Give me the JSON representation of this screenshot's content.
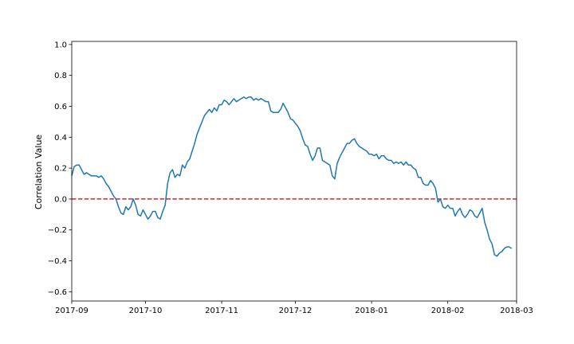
{
  "chart_data": {
    "type": "line",
    "title": "",
    "xlabel": "",
    "ylabel": "Correlation Value",
    "xlim": [
      "2017-09-01",
      "2018-03-01"
    ],
    "ylim": [
      -0.66,
      1.02
    ],
    "grid": false,
    "x_ticks": [
      {
        "date": "2017-09-01",
        "label": "2017-09"
      },
      {
        "date": "2017-10-01",
        "label": "2017-10"
      },
      {
        "date": "2017-11-01",
        "label": "2017-11"
      },
      {
        "date": "2017-12-01",
        "label": "2017-12"
      },
      {
        "date": "2018-01-01",
        "label": "2018-01"
      },
      {
        "date": "2018-02-01",
        "label": "2018-02"
      },
      {
        "date": "2018-03-01",
        "label": "2018-03"
      }
    ],
    "y_ticks": [
      {
        "value": 1.0,
        "label": "1.0"
      },
      {
        "value": 0.8,
        "label": "0.8"
      },
      {
        "value": 0.6,
        "label": "0.6"
      },
      {
        "value": 0.4,
        "label": "0.4"
      },
      {
        "value": 0.2,
        "label": "0.2"
      },
      {
        "value": 0.0,
        "label": "0.0"
      },
      {
        "value": -0.2,
        "label": "−0.2"
      },
      {
        "value": -0.4,
        "label": "−0.4"
      },
      {
        "value": -0.6,
        "label": "−0.6"
      }
    ],
    "reference_line": {
      "y": 0.0,
      "color": "#d62728",
      "style": "dashed"
    },
    "series": [
      {
        "color": "#1f77b4",
        "points": [
          [
            "2017-09-01",
            0.15
          ],
          [
            "2017-09-02",
            0.21
          ],
          [
            "2017-09-03",
            0.22
          ],
          [
            "2017-09-04",
            0.22
          ],
          [
            "2017-09-05",
            0.19
          ],
          [
            "2017-09-06",
            0.16
          ],
          [
            "2017-09-07",
            0.17
          ],
          [
            "2017-09-08",
            0.16
          ],
          [
            "2017-09-09",
            0.15
          ],
          [
            "2017-09-10",
            0.15
          ],
          [
            "2017-09-11",
            0.15
          ],
          [
            "2017-09-12",
            0.14
          ],
          [
            "2017-09-13",
            0.15
          ],
          [
            "2017-09-14",
            0.13
          ],
          [
            "2017-09-15",
            0.1
          ],
          [
            "2017-09-16",
            0.08
          ],
          [
            "2017-09-17",
            0.05
          ],
          [
            "2017-09-18",
            0.02
          ],
          [
            "2017-09-19",
            0.0
          ],
          [
            "2017-09-20",
            -0.05
          ],
          [
            "2017-09-21",
            -0.09
          ],
          [
            "2017-09-22",
            -0.1
          ],
          [
            "2017-09-23",
            -0.05
          ],
          [
            "2017-09-24",
            -0.07
          ],
          [
            "2017-09-25",
            -0.05
          ],
          [
            "2017-09-26",
            0.0
          ],
          [
            "2017-09-27",
            -0.04
          ],
          [
            "2017-09-28",
            -0.1
          ],
          [
            "2017-09-29",
            -0.11
          ],
          [
            "2017-09-30",
            -0.07
          ],
          [
            "2017-10-01",
            -0.1
          ],
          [
            "2017-10-02",
            -0.13
          ],
          [
            "2017-10-03",
            -0.11
          ],
          [
            "2017-10-04",
            -0.08
          ],
          [
            "2017-10-05",
            -0.08
          ],
          [
            "2017-10-06",
            -0.12
          ],
          [
            "2017-10-07",
            -0.13
          ],
          [
            "2017-10-08",
            -0.08
          ],
          [
            "2017-10-09",
            -0.04
          ],
          [
            "2017-10-10",
            0.1
          ],
          [
            "2017-10-11",
            0.17
          ],
          [
            "2017-10-12",
            0.19
          ],
          [
            "2017-10-13",
            0.14
          ],
          [
            "2017-10-14",
            0.16
          ],
          [
            "2017-10-15",
            0.15
          ],
          [
            "2017-10-16",
            0.22
          ],
          [
            "2017-10-17",
            0.2
          ],
          [
            "2017-10-18",
            0.24
          ],
          [
            "2017-10-19",
            0.26
          ],
          [
            "2017-10-20",
            0.31
          ],
          [
            "2017-10-21",
            0.36
          ],
          [
            "2017-10-22",
            0.42
          ],
          [
            "2017-10-23",
            0.46
          ],
          [
            "2017-10-24",
            0.5
          ],
          [
            "2017-10-25",
            0.54
          ],
          [
            "2017-10-26",
            0.56
          ],
          [
            "2017-10-27",
            0.58
          ],
          [
            "2017-10-28",
            0.56
          ],
          [
            "2017-10-29",
            0.59
          ],
          [
            "2017-10-30",
            0.57
          ],
          [
            "2017-10-31",
            0.61
          ],
          [
            "2017-11-01",
            0.61
          ],
          [
            "2017-11-02",
            0.64
          ],
          [
            "2017-11-03",
            0.63
          ],
          [
            "2017-11-04",
            0.61
          ],
          [
            "2017-11-05",
            0.63
          ],
          [
            "2017-11-06",
            0.65
          ],
          [
            "2017-11-07",
            0.63
          ],
          [
            "2017-11-08",
            0.64
          ],
          [
            "2017-11-09",
            0.65
          ],
          [
            "2017-11-10",
            0.66
          ],
          [
            "2017-11-11",
            0.65
          ],
          [
            "2017-11-12",
            0.66
          ],
          [
            "2017-11-13",
            0.66
          ],
          [
            "2017-11-14",
            0.64
          ],
          [
            "2017-11-15",
            0.65
          ],
          [
            "2017-11-16",
            0.64
          ],
          [
            "2017-11-17",
            0.65
          ],
          [
            "2017-11-18",
            0.64
          ],
          [
            "2017-11-19",
            0.63
          ],
          [
            "2017-11-20",
            0.63
          ],
          [
            "2017-11-21",
            0.57
          ],
          [
            "2017-11-22",
            0.56
          ],
          [
            "2017-11-23",
            0.56
          ],
          [
            "2017-11-24",
            0.56
          ],
          [
            "2017-11-25",
            0.58
          ],
          [
            "2017-11-26",
            0.62
          ],
          [
            "2017-11-27",
            0.59
          ],
          [
            "2017-11-28",
            0.56
          ],
          [
            "2017-11-29",
            0.52
          ],
          [
            "2017-11-30",
            0.51
          ],
          [
            "2017-12-01",
            0.49
          ],
          [
            "2017-12-02",
            0.47
          ],
          [
            "2017-12-03",
            0.44
          ],
          [
            "2017-12-04",
            0.39
          ],
          [
            "2017-12-05",
            0.35
          ],
          [
            "2017-12-06",
            0.34
          ],
          [
            "2017-12-07",
            0.29
          ],
          [
            "2017-12-08",
            0.25
          ],
          [
            "2017-12-09",
            0.28
          ],
          [
            "2017-12-10",
            0.33
          ],
          [
            "2017-12-11",
            0.33
          ],
          [
            "2017-12-12",
            0.25
          ],
          [
            "2017-12-13",
            0.24
          ],
          [
            "2017-12-14",
            0.23
          ],
          [
            "2017-12-15",
            0.22
          ],
          [
            "2017-12-16",
            0.15
          ],
          [
            "2017-12-17",
            0.13
          ],
          [
            "2017-12-18",
            0.23
          ],
          [
            "2017-12-19",
            0.27
          ],
          [
            "2017-12-20",
            0.3
          ],
          [
            "2017-12-21",
            0.33
          ],
          [
            "2017-12-22",
            0.36
          ],
          [
            "2017-12-23",
            0.36
          ],
          [
            "2017-12-24",
            0.38
          ],
          [
            "2017-12-25",
            0.39
          ],
          [
            "2017-12-26",
            0.36
          ],
          [
            "2017-12-27",
            0.34
          ],
          [
            "2017-12-28",
            0.33
          ],
          [
            "2017-12-29",
            0.32
          ],
          [
            "2017-12-30",
            0.31
          ],
          [
            "2017-12-31",
            0.29
          ],
          [
            "2018-01-01",
            0.29
          ],
          [
            "2018-01-02",
            0.28
          ],
          [
            "2018-01-03",
            0.29
          ],
          [
            "2018-01-04",
            0.26
          ],
          [
            "2018-01-05",
            0.28
          ],
          [
            "2018-01-06",
            0.28
          ],
          [
            "2018-01-07",
            0.26
          ],
          [
            "2018-01-08",
            0.25
          ],
          [
            "2018-01-09",
            0.25
          ],
          [
            "2018-01-10",
            0.23
          ],
          [
            "2018-01-11",
            0.24
          ],
          [
            "2018-01-12",
            0.23
          ],
          [
            "2018-01-13",
            0.24
          ],
          [
            "2018-01-14",
            0.22
          ],
          [
            "2018-01-15",
            0.24
          ],
          [
            "2018-01-16",
            0.22
          ],
          [
            "2018-01-17",
            0.22
          ],
          [
            "2018-01-18",
            0.2
          ],
          [
            "2018-01-19",
            0.19
          ],
          [
            "2018-01-20",
            0.14
          ],
          [
            "2018-01-21",
            0.14
          ],
          [
            "2018-01-22",
            0.1
          ],
          [
            "2018-01-23",
            0.09
          ],
          [
            "2018-01-24",
            0.09
          ],
          [
            "2018-01-25",
            0.12
          ],
          [
            "2018-01-26",
            0.1
          ],
          [
            "2018-01-27",
            0.07
          ],
          [
            "2018-01-28",
            -0.02
          ],
          [
            "2018-01-29",
            0.0
          ],
          [
            "2018-01-30",
            -0.05
          ],
          [
            "2018-01-31",
            -0.06
          ],
          [
            "2018-02-01",
            -0.04
          ],
          [
            "2018-02-02",
            -0.06
          ],
          [
            "2018-02-03",
            -0.06
          ],
          [
            "2018-02-04",
            -0.11
          ],
          [
            "2018-02-05",
            -0.08
          ],
          [
            "2018-02-06",
            -0.06
          ],
          [
            "2018-02-07",
            -0.1
          ],
          [
            "2018-02-08",
            -0.12
          ],
          [
            "2018-02-09",
            -0.1
          ],
          [
            "2018-02-10",
            -0.07
          ],
          [
            "2018-02-11",
            -0.08
          ],
          [
            "2018-02-12",
            -0.11
          ],
          [
            "2018-02-13",
            -0.12
          ],
          [
            "2018-02-14",
            -0.09
          ],
          [
            "2018-02-15",
            -0.06
          ],
          [
            "2018-02-16",
            -0.15
          ],
          [
            "2018-02-17",
            -0.2
          ],
          [
            "2018-02-18",
            -0.26
          ],
          [
            "2018-02-19",
            -0.29
          ],
          [
            "2018-02-20",
            -0.36
          ],
          [
            "2018-02-21",
            -0.37
          ],
          [
            "2018-02-22",
            -0.35
          ],
          [
            "2018-02-23",
            -0.34
          ],
          [
            "2018-02-24",
            -0.32
          ],
          [
            "2018-02-25",
            -0.31
          ],
          [
            "2018-02-26",
            -0.31
          ],
          [
            "2018-02-27",
            -0.32
          ]
        ]
      }
    ]
  }
}
